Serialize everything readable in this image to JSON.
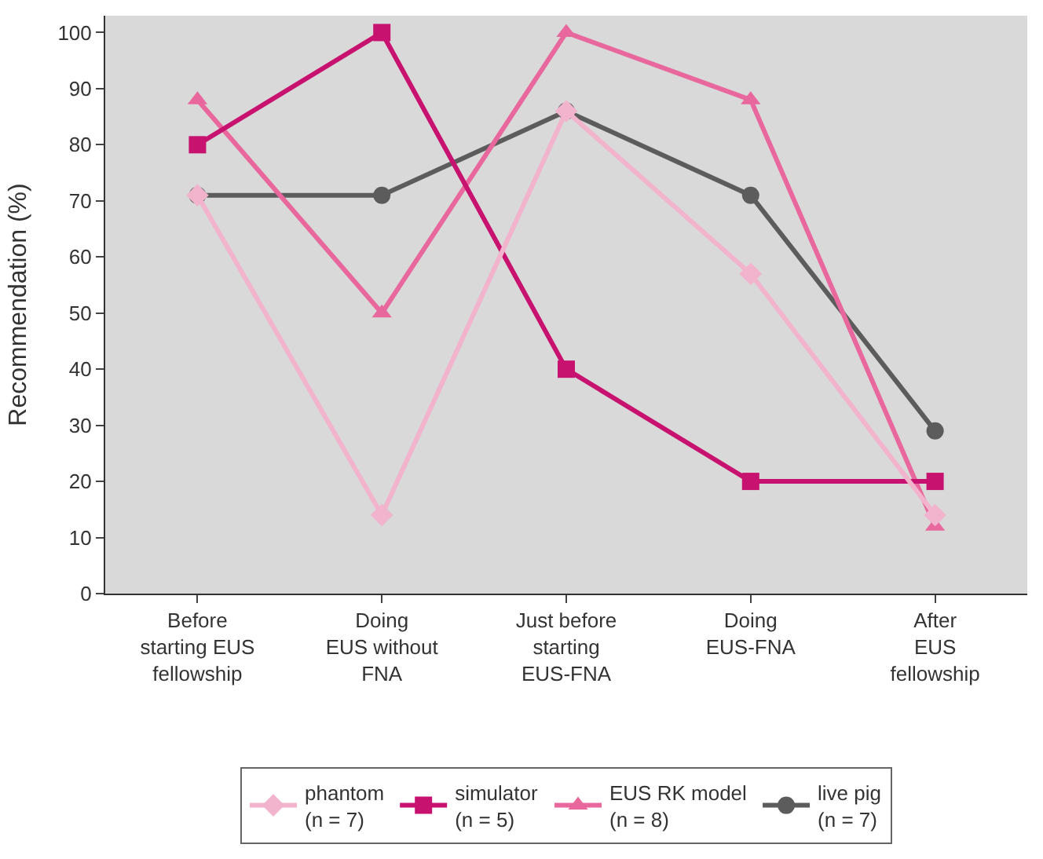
{
  "chart_data": {
    "type": "line",
    "ylabel": "Recommendation (%)",
    "categories": [
      "Before\nstarting EUS\nfellowship",
      "Doing\nEUS without\nFNA",
      "Just before\nstarting\nEUS-FNA",
      "Doing\nEUS-FNA",
      "After\nEUS\nfellowship"
    ],
    "series": [
      {
        "name": "phantom\n(n = 7)",
        "color": "#f2b3cc",
        "marker": "diamond",
        "values": [
          71,
          14,
          86,
          57,
          14
        ]
      },
      {
        "name": "simulator\n(n = 5)",
        "color": "#c8126f",
        "marker": "square",
        "values": [
          80,
          100,
          40,
          20,
          20
        ]
      },
      {
        "name": "EUS RK model\n(n = 8)",
        "color": "#e8679c",
        "marker": "triangle",
        "values": [
          88,
          50,
          100,
          88,
          12
        ]
      },
      {
        "name": "live pig\n(n = 7)",
        "color": "#5c5c5c",
        "marker": "circle",
        "values": [
          71,
          71,
          86,
          71,
          29
        ]
      }
    ],
    "ylim": [
      0,
      103
    ],
    "yticks": [
      0,
      10,
      20,
      30,
      40,
      50,
      60,
      70,
      80,
      90,
      100
    ],
    "grid": false,
    "legend": "bottom"
  }
}
